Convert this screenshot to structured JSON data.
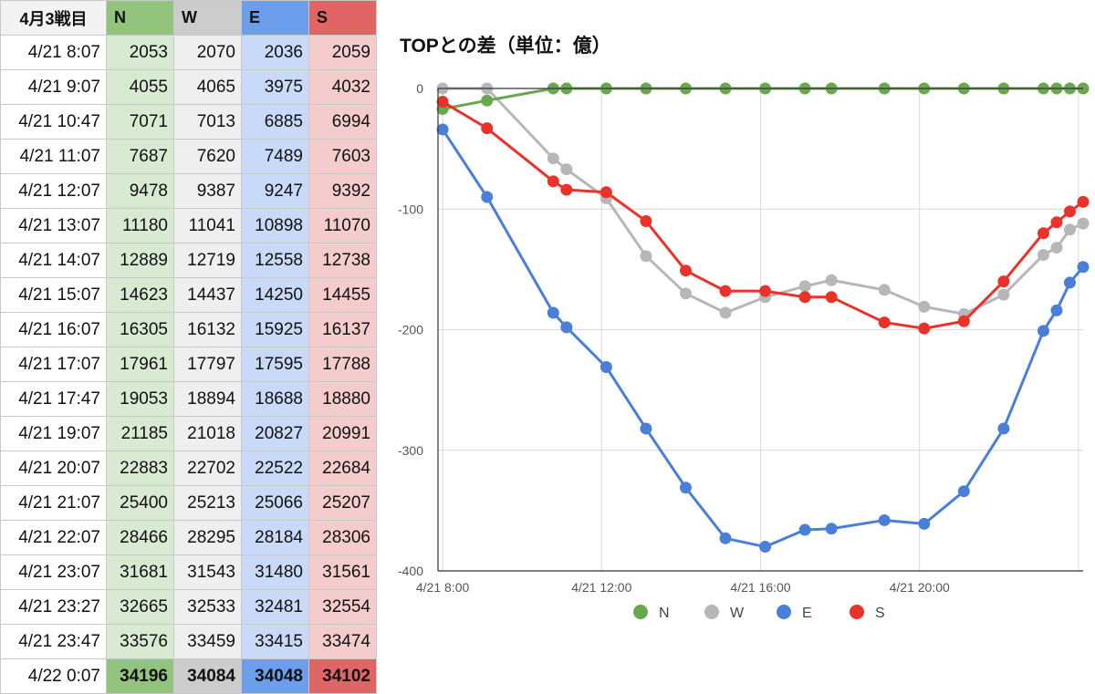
{
  "table": {
    "corner_label": "4月3戦目",
    "headers": [
      "N",
      "W",
      "E",
      "S"
    ],
    "header_colors": [
      "#93c47d",
      "#cccccc",
      "#6d9eeb",
      "#e06666"
    ],
    "cell_colors": [
      "#d9ead3",
      "#efefef",
      "#c9daf8",
      "#f4cccc"
    ],
    "rows": [
      {
        "time": "4/21 8:07",
        "values": [
          "2053",
          "2070",
          "2036",
          "2059"
        ]
      },
      {
        "time": "4/21 9:07",
        "values": [
          "4055",
          "4065",
          "3975",
          "4032"
        ]
      },
      {
        "time": "4/21 10:47",
        "values": [
          "7071",
          "7013",
          "6885",
          "6994"
        ]
      },
      {
        "time": "4/21 11:07",
        "values": [
          "7687",
          "7620",
          "7489",
          "7603"
        ]
      },
      {
        "time": "4/21 12:07",
        "values": [
          "9478",
          "9387",
          "9247",
          "9392"
        ]
      },
      {
        "time": "4/21 13:07",
        "values": [
          "11180",
          "11041",
          "10898",
          "11070"
        ]
      },
      {
        "time": "4/21 14:07",
        "values": [
          "12889",
          "12719",
          "12558",
          "12738"
        ]
      },
      {
        "time": "4/21 15:07",
        "values": [
          "14623",
          "14437",
          "14250",
          "14455"
        ]
      },
      {
        "time": "4/21 16:07",
        "values": [
          "16305",
          "16132",
          "15925",
          "16137"
        ]
      },
      {
        "time": "4/21 17:07",
        "values": [
          "17961",
          "17797",
          "17595",
          "17788"
        ]
      },
      {
        "time": "4/21 17:47",
        "values": [
          "19053",
          "18894",
          "18688",
          "18880"
        ]
      },
      {
        "time": "4/21 19:07",
        "values": [
          "21185",
          "21018",
          "20827",
          "20991"
        ]
      },
      {
        "time": "4/21 20:07",
        "values": [
          "22883",
          "22702",
          "22522",
          "22684"
        ]
      },
      {
        "time": "4/21 21:07",
        "values": [
          "25400",
          "25213",
          "25066",
          "25207"
        ]
      },
      {
        "time": "4/21 22:07",
        "values": [
          "28466",
          "28295",
          "28184",
          "28306"
        ]
      },
      {
        "time": "4/21 23:07",
        "values": [
          "31681",
          "31543",
          "31480",
          "31561"
        ]
      },
      {
        "time": "4/21 23:27",
        "values": [
          "32665",
          "32533",
          "32481",
          "32554"
        ]
      },
      {
        "time": "4/21 23:47",
        "values": [
          "33576",
          "33459",
          "33415",
          "33474"
        ]
      },
      {
        "time": "4/22 0:07",
        "values": [
          "34196",
          "34084",
          "34048",
          "34102"
        ]
      }
    ]
  },
  "chart_data": {
    "type": "line",
    "title": "TOPとの差（単位：億）",
    "xlabel": "",
    "ylabel": "",
    "x_axis": "time",
    "xlim": [
      "4/21 7:53",
      "4/22 0:07"
    ],
    "xticks": [
      {
        "value": "4/21 8:00",
        "label": "4/21 8:00"
      },
      {
        "value": "4/21 12:00",
        "label": "4/21 12:00"
      },
      {
        "value": "4/21 16:00",
        "label": "4/21 16:00"
      },
      {
        "value": "4/21 20:00",
        "label": "4/21 20:00"
      },
      {
        "value": "4/22 0:00",
        "label": ""
      }
    ],
    "ylim": [
      -400,
      0
    ],
    "yticks": [
      0,
      -100,
      -200,
      -300,
      -400
    ],
    "grid": true,
    "legend_position": "bottom",
    "series": [
      {
        "name": "N",
        "color": "#6aa84f",
        "points": [
          [
            "4/21 8:00",
            -17
          ],
          [
            "4/21 9:07",
            -10
          ],
          [
            "4/21 10:47",
            0
          ],
          [
            "4/21 11:07",
            0
          ],
          [
            "4/21 12:07",
            0
          ],
          [
            "4/21 13:07",
            0
          ],
          [
            "4/21 14:07",
            0
          ],
          [
            "4/21 15:07",
            0
          ],
          [
            "4/21 16:07",
            0
          ],
          [
            "4/21 17:07",
            0
          ],
          [
            "4/21 17:47",
            0
          ],
          [
            "4/21 19:07",
            0
          ],
          [
            "4/21 20:07",
            0
          ],
          [
            "4/21 21:07",
            0
          ],
          [
            "4/21 22:07",
            0
          ],
          [
            "4/21 23:07",
            0
          ],
          [
            "4/21 23:27",
            0
          ],
          [
            "4/21 23:47",
            0
          ],
          [
            "4/22 0:07",
            0
          ]
        ]
      },
      {
        "name": "W",
        "color": "#b7b7b7",
        "points": [
          [
            "4/21 8:00",
            0
          ],
          [
            "4/21 9:07",
            0
          ],
          [
            "4/21 10:47",
            -58
          ],
          [
            "4/21 11:07",
            -67
          ],
          [
            "4/21 12:07",
            -91
          ],
          [
            "4/21 13:07",
            -139
          ],
          [
            "4/21 14:07",
            -170
          ],
          [
            "4/21 15:07",
            -186
          ],
          [
            "4/21 16:07",
            -173
          ],
          [
            "4/21 17:07",
            -164
          ],
          [
            "4/21 17:47",
            -159
          ],
          [
            "4/21 19:07",
            -167
          ],
          [
            "4/21 20:07",
            -181
          ],
          [
            "4/21 21:07",
            -187
          ],
          [
            "4/21 22:07",
            -171
          ],
          [
            "4/21 23:07",
            -138
          ],
          [
            "4/21 23:27",
            -132
          ],
          [
            "4/21 23:47",
            -117
          ],
          [
            "4/22 0:07",
            -112
          ]
        ]
      },
      {
        "name": "E",
        "color": "#4a7fd8",
        "points": [
          [
            "4/21 8:00",
            -34
          ],
          [
            "4/21 9:07",
            -90
          ],
          [
            "4/21 10:47",
            -186
          ],
          [
            "4/21 11:07",
            -198
          ],
          [
            "4/21 12:07",
            -231
          ],
          [
            "4/21 13:07",
            -282
          ],
          [
            "4/21 14:07",
            -331
          ],
          [
            "4/21 15:07",
            -373
          ],
          [
            "4/21 16:07",
            -380
          ],
          [
            "4/21 17:07",
            -366
          ],
          [
            "4/21 17:47",
            -365
          ],
          [
            "4/21 19:07",
            -358
          ],
          [
            "4/21 20:07",
            -361
          ],
          [
            "4/21 21:07",
            -334
          ],
          [
            "4/21 22:07",
            -282
          ],
          [
            "4/21 23:07",
            -201
          ],
          [
            "4/21 23:27",
            -184
          ],
          [
            "4/21 23:47",
            -161
          ],
          [
            "4/22 0:07",
            -148
          ]
        ]
      },
      {
        "name": "S",
        "color": "#e8322a",
        "points": [
          [
            "4/21 8:00",
            -11
          ],
          [
            "4/21 9:07",
            -33
          ],
          [
            "4/21 10:47",
            -77
          ],
          [
            "4/21 11:07",
            -84
          ],
          [
            "4/21 12:07",
            -86
          ],
          [
            "4/21 13:07",
            -110
          ],
          [
            "4/21 14:07",
            -151
          ],
          [
            "4/21 15:07",
            -168
          ],
          [
            "4/21 16:07",
            -168
          ],
          [
            "4/21 17:07",
            -173
          ],
          [
            "4/21 17:47",
            -173
          ],
          [
            "4/21 19:07",
            -194
          ],
          [
            "4/21 20:07",
            -199
          ],
          [
            "4/21 21:07",
            -193
          ],
          [
            "4/21 22:07",
            -160
          ],
          [
            "4/21 23:07",
            -120
          ],
          [
            "4/21 23:27",
            -111
          ],
          [
            "4/21 23:47",
            -102
          ],
          [
            "4/22 0:07",
            -94
          ]
        ]
      }
    ]
  }
}
